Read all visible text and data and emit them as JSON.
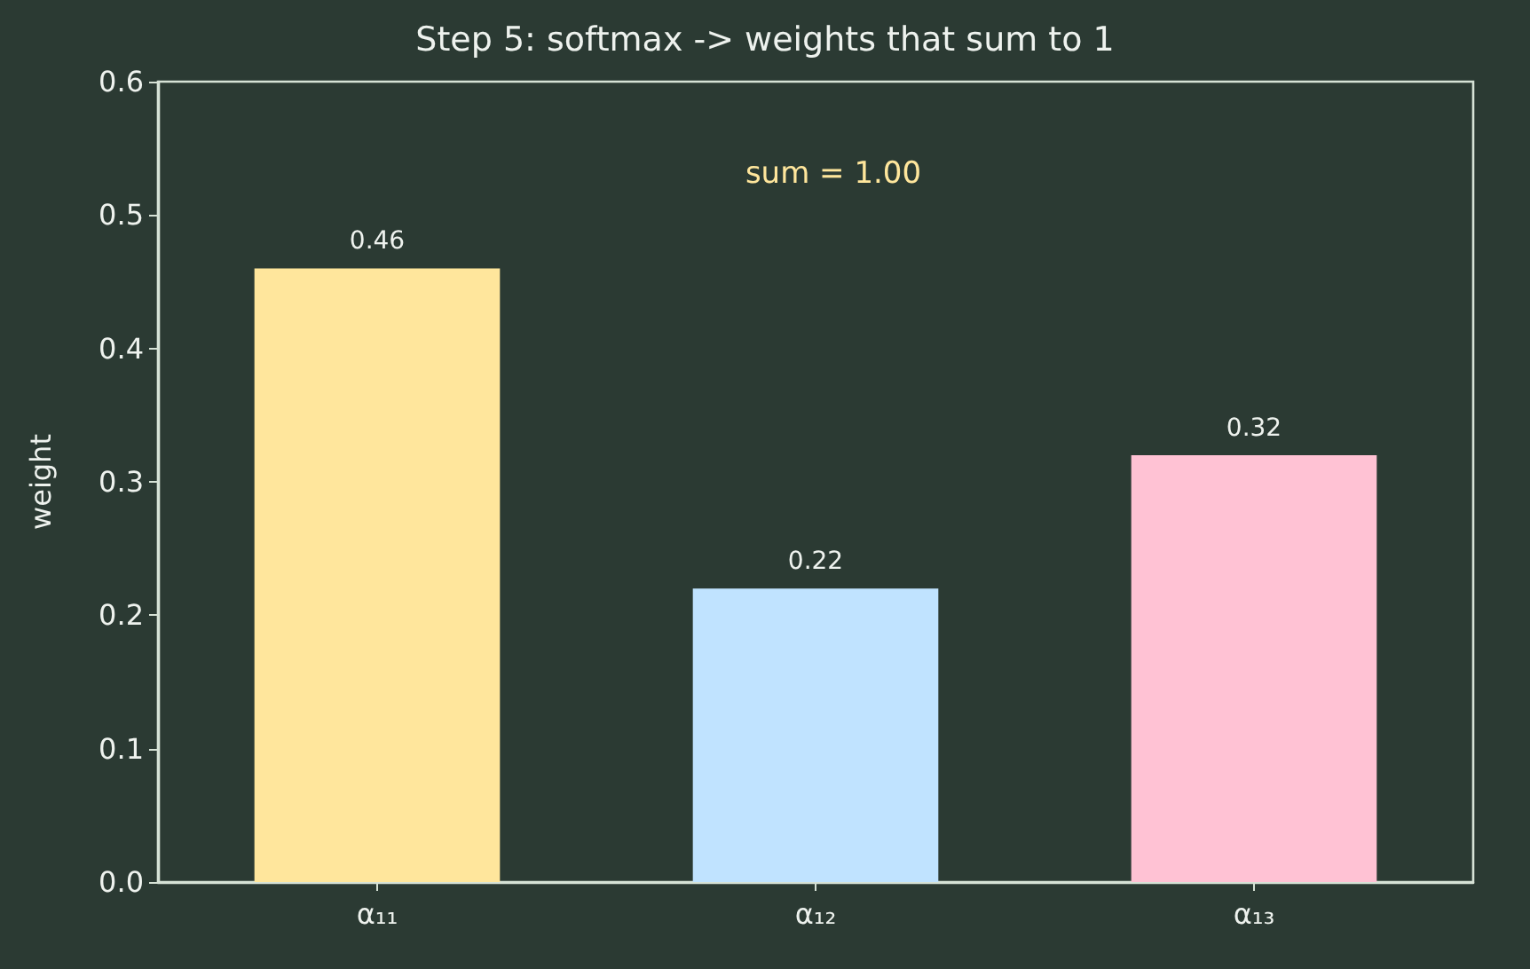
{
  "chart_data": {
    "type": "bar",
    "title": "Step 5: softmax -> weights that sum to 1",
    "ylabel": "weight",
    "categories": [
      "α₁₁",
      "α₁₂",
      "α₁₃"
    ],
    "values": [
      0.46,
      0.22,
      0.32
    ],
    "colors": [
      "#ffe69c",
      "#c0e3ff",
      "#ffc2d4"
    ],
    "ylim": [
      0,
      0.6
    ],
    "yticks": [
      {
        "value": 0,
        "label": "0.0"
      },
      0.1,
      0.2,
      0.3,
      0.4,
      0.5,
      0.6
    ],
    "data_labels": true,
    "annotations": [
      "sum = 1.00"
    ]
  }
}
